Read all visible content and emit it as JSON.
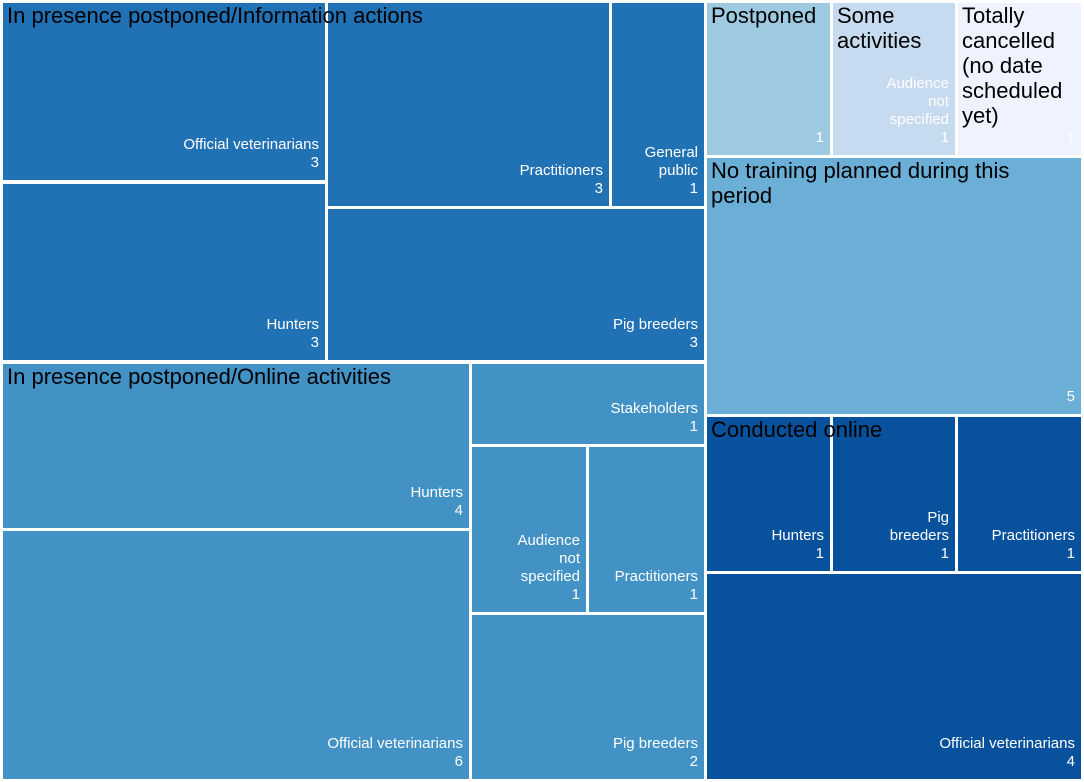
{
  "chart_data": {
    "type": "treemap",
    "groups": [
      {
        "name": "In presence postponed/Information actions",
        "color": "#2171b5",
        "children": [
          {
            "name": "Official veterinarians",
            "value": 3
          },
          {
            "name": "Hunters",
            "value": 3
          },
          {
            "name": "Practitioners",
            "value": 3
          },
          {
            "name": "General\npublic",
            "value": 1
          },
          {
            "name": "Pig breeders",
            "value": 3
          }
        ]
      },
      {
        "name": "In presence postponed/Online activities",
        "color": "#4292c6",
        "children": [
          {
            "name": "Hunters",
            "value": 4
          },
          {
            "name": "Official veterinarians",
            "value": 6
          },
          {
            "name": "Stakeholders",
            "value": 1
          },
          {
            "name": "Audience\nnot\nspecified",
            "value": 1
          },
          {
            "name": "Practitioners",
            "value": 1
          },
          {
            "name": "Pig breeders",
            "value": 2
          }
        ]
      },
      {
        "name": "Postponed",
        "color": "#9ecae1",
        "value": 1
      },
      {
        "name": "Some\nactivities",
        "color": "#c6dbef",
        "children": [
          {
            "name": "Audience\nnot\nspecified",
            "value": 1
          }
        ]
      },
      {
        "name": "Totally\ncancelled\n(no date\nscheduled\nyet)",
        "color": "#eff3ff",
        "value": 1
      },
      {
        "name": "No training planned during this\nperiod",
        "color": "#6baed6",
        "value": 5
      },
      {
        "name": "Conducted online",
        "color": "#08519c",
        "children": [
          {
            "name": "Hunters",
            "value": 1
          },
          {
            "name": "Pig\nbreeders",
            "value": 1
          },
          {
            "name": "Practitioners",
            "value": 1
          },
          {
            "name": "Official veterinarians",
            "value": 4
          }
        ]
      }
    ]
  }
}
